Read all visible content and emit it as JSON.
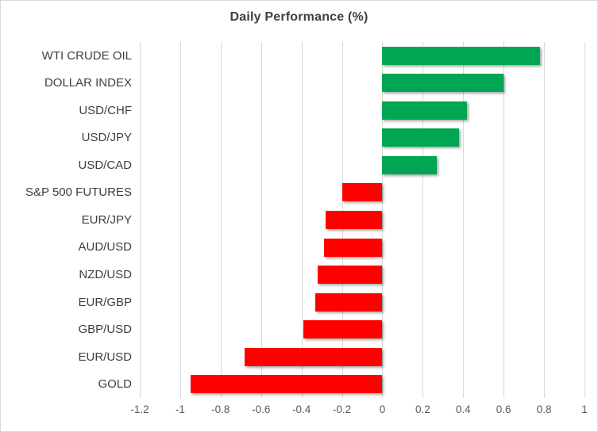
{
  "chart_data": {
    "type": "bar",
    "orientation": "horizontal",
    "title": "Daily Performance (%)",
    "categories": [
      "WTI CRUDE OIL",
      "DOLLAR INDEX",
      "USD/CHF",
      "USD/JPY",
      "USD/CAD",
      "S&P 500 FUTURES",
      "EUR/JPY",
      "AUD/USD",
      "NZD/USD",
      "EUR/GBP",
      "GBP/USD",
      "EUR/USD",
      "GOLD"
    ],
    "values": [
      0.78,
      0.6,
      0.42,
      0.38,
      0.27,
      -0.2,
      -0.28,
      -0.29,
      -0.32,
      -0.33,
      -0.39,
      -0.68,
      -0.95
    ],
    "xlim": [
      -1.2,
      1.0
    ],
    "x_ticks": [
      -1.2,
      -1,
      -0.8,
      -0.6,
      -0.4,
      -0.2,
      0,
      0.2,
      0.4,
      0.6,
      0.8,
      1
    ],
    "x_tick_labels": [
      "-1.2",
      "-1",
      "-0.8",
      "-0.6",
      "-0.4",
      "-0.2",
      "0",
      "0.2",
      "0.4",
      "0.6",
      "0.8",
      "1"
    ],
    "grid": true,
    "legend": "none",
    "positive_color": "#00a651",
    "negative_color": "#ff0000",
    "gridline_color": "#d9d9d9",
    "title_color": "#3f3f3f",
    "category_label_color": "#3f3f3f",
    "tick_label_color": "#595959"
  }
}
